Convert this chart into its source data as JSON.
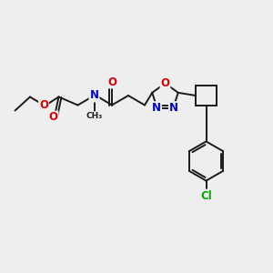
{
  "background_color": "#eeeeee",
  "bond_color": "#1a1a1a",
  "bond_width": 1.4,
  "atom_colors": {
    "O": "#dd0000",
    "N": "#0000cc",
    "Cl": "#00aa00",
    "C": "#1a1a1a"
  },
  "font_size_atom": 8.5,
  "figsize": [
    3.0,
    3.0
  ],
  "dpi": 100
}
